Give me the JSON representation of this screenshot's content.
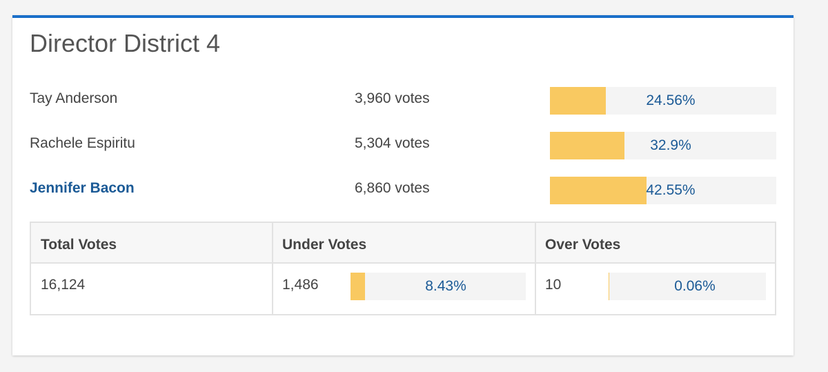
{
  "header": {
    "title": "Director District 4"
  },
  "candidates": [
    {
      "name": "Tay Anderson",
      "votes": "3,960 votes",
      "percent": 24.56,
      "percent_label": "24.56%",
      "winner": false
    },
    {
      "name": "Rachele Espiritu",
      "votes": "5,304 votes",
      "percent": 32.9,
      "percent_label": "32.9%",
      "winner": false
    },
    {
      "name": "Jennifer Bacon",
      "votes": "6,860 votes",
      "percent": 42.55,
      "percent_label": "42.55%",
      "winner": true
    }
  ],
  "summary": {
    "headers": [
      "Total Votes",
      "Under Votes",
      "Over Votes"
    ],
    "total": "16,124",
    "under": {
      "count": "1,486",
      "percent": 8.43,
      "percent_label": "8.43%"
    },
    "over": {
      "count": "10",
      "percent": 0.06,
      "percent_label": "0.06%"
    }
  }
}
